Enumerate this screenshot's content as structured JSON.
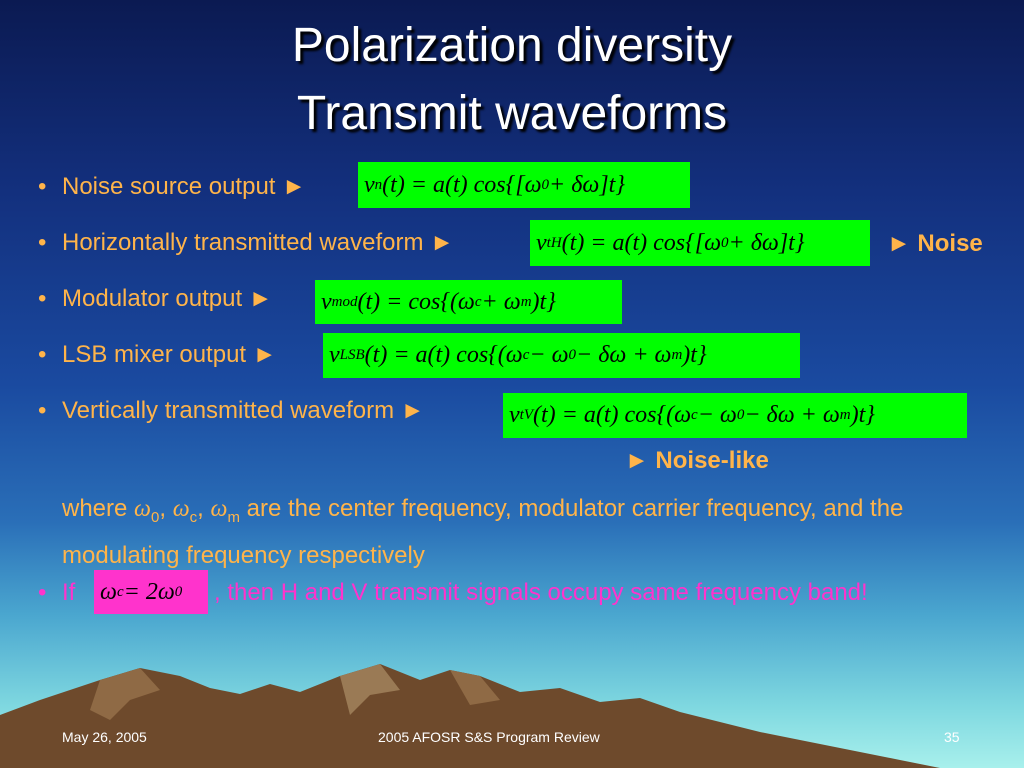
{
  "title": [
    "Polarization diversity",
    "Transmit waveforms"
  ],
  "bullets": [
    {
      "label": "Noise source output ►",
      "equation": [
        "v",
        {
          "sub": "n"
        },
        "(t) = a(t) cos{[ω",
        {
          "sub": "0"
        },
        " + δω]t}"
      ]
    },
    {
      "label": "Horizontally transmitted waveform ►",
      "equation": [
        "v",
        {
          "sub": "tH"
        },
        "(t) = a(t) cos{[ω",
        {
          "sub": "0"
        },
        " + δω]t}"
      ],
      "result": "► Noise"
    },
    {
      "label": "Modulator output ►",
      "equation": [
        "v",
        {
          "sub": "mod"
        },
        "(t) = cos{(ω",
        {
          "sub": "c"
        },
        " + ω",
        {
          "sub": "m"
        },
        ")t}"
      ]
    },
    {
      "label": "LSB mixer output ►",
      "equation": [
        "v",
        {
          "sub": "LSB"
        },
        "(t) = a(t) cos{(ω",
        {
          "sub": "c"
        },
        " − ω",
        {
          "sub": "0"
        },
        " − δω + ω",
        {
          "sub": "m"
        },
        ")t}"
      ]
    },
    {
      "label": "Vertically transmitted waveform ►",
      "equation": [
        "v",
        {
          "sub": "tV"
        },
        "(t) = a(t) cos{(ω",
        {
          "sub": "c"
        },
        " − ω",
        {
          "sub": "0"
        },
        " − δω + ω",
        {
          "sub": "m"
        },
        ")t}"
      ],
      "result": "► Noise-like"
    }
  ],
  "note": [
    "where ",
    "ω",
    {
      "sub": "0"
    },
    ", ",
    "ω",
    {
      "sub": "c"
    },
    ", ",
    "ω",
    {
      "sub": "m"
    },
    " are the center frequency, modulator carrier frequency, and the modulating frequency respectively"
  ],
  "last_bullet": {
    "label": "If",
    "equation": [
      "ω",
      {
        "sub": "c"
      },
      " = 2ω",
      {
        "sub": "0"
      }
    ],
    "text": ", then H and V transmit signals occupy same frequency band!"
  },
  "footer": {
    "date": "May 26, 2005",
    "event": "2005 AFOSR S&S Program Review",
    "page": "35"
  }
}
